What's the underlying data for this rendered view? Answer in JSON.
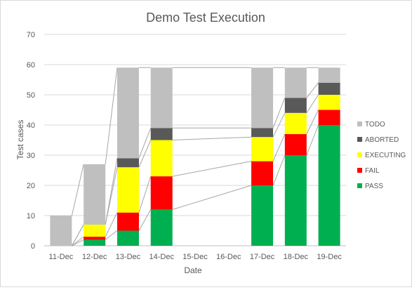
{
  "chart_data": {
    "type": "bar",
    "stacked": true,
    "title": "Demo Test Execution",
    "xlabel": "Date",
    "ylabel": "Test cases",
    "ylim": [
      0,
      70
    ],
    "yticks": [
      0,
      10,
      20,
      30,
      40,
      50,
      60,
      70
    ],
    "grid": true,
    "legend_position": "right",
    "series_lines": true,
    "categories": [
      "11-Dec",
      "12-Dec",
      "13-Dec",
      "14-Dec",
      "15-Dec",
      "16-Dec",
      "17-Dec",
      "18-Dec",
      "19-Dec"
    ],
    "series": [
      {
        "name": "PASS",
        "color": "#00b050",
        "values": [
          0,
          2,
          5,
          12,
          0,
          0,
          20,
          30,
          40
        ]
      },
      {
        "name": "FAIL",
        "color": "#ff0000",
        "values": [
          0,
          1,
          6,
          11,
          0,
          0,
          8,
          7,
          5
        ]
      },
      {
        "name": "EXECUTING",
        "color": "#ffff00",
        "values": [
          0,
          4,
          15,
          12,
          0,
          0,
          8,
          7,
          5
        ]
      },
      {
        "name": "ABORTED",
        "color": "#595959",
        "values": [
          0,
          0,
          3,
          4,
          0,
          0,
          3,
          5,
          4
        ]
      },
      {
        "name": "TODO",
        "color": "#bfbfbf",
        "values": [
          10,
          20,
          30,
          20,
          0,
          0,
          20,
          10,
          5
        ]
      }
    ]
  }
}
